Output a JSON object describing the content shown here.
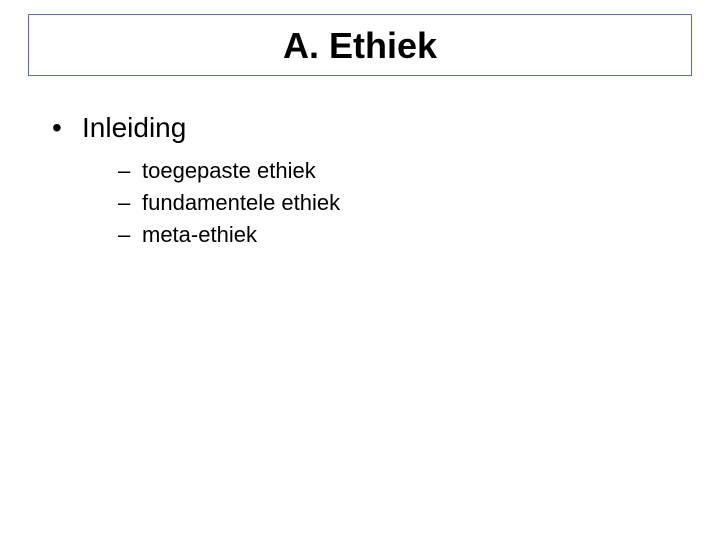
{
  "slide": {
    "background_color": "#ffffff",
    "text_color": "#000000",
    "font_family": "Arial"
  },
  "title": {
    "text": "A. Ethiek",
    "fontsize": 36,
    "font_weight": "bold",
    "border_color": "#5a6ea0",
    "border_width": 1,
    "box_background": "#ffffff"
  },
  "body": {
    "level1_fontsize": 28,
    "level2_fontsize": 22,
    "items": [
      {
        "text": "Inleiding",
        "children": [
          {
            "text": "toegepaste ethiek"
          },
          {
            "text": "fundamentele ethiek"
          },
          {
            "text": "meta-ethiek"
          }
        ]
      }
    ]
  }
}
